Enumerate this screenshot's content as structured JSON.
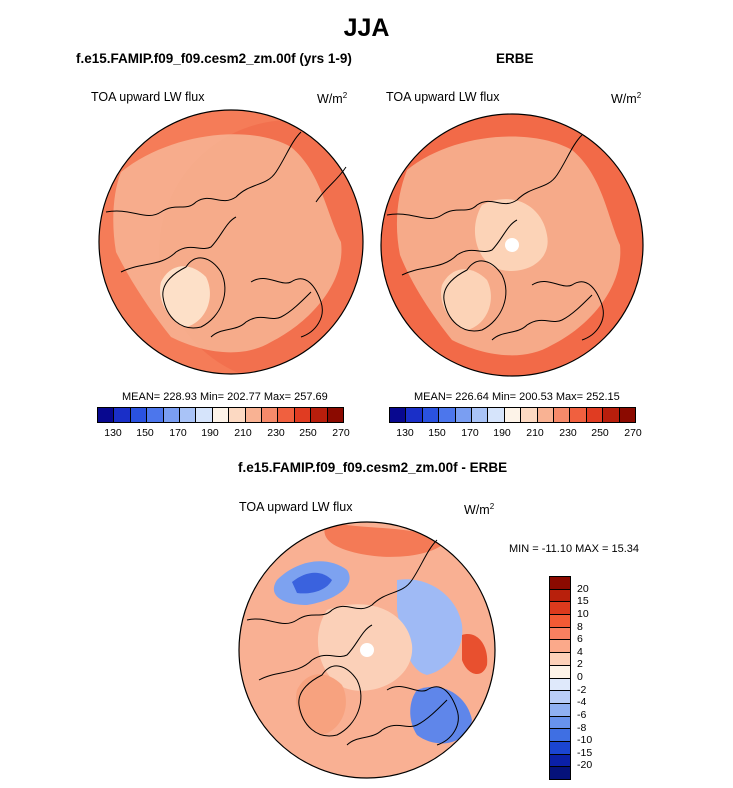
{
  "page": {
    "season": "JJA"
  },
  "panels": [
    {
      "id": "model",
      "title": "f.e15.FAMIP.f09_f09.cesm2_zm.00f (yrs 1-9)",
      "field": "TOA upward LW flux",
      "units_base": "W/m",
      "units_exp": "2",
      "stats": "MEAN= 228.93  Min= 202.77  Max= 257.69",
      "pole_hole": false,
      "ocean_color": "#f57c58",
      "land_color": "#f7b595",
      "greenland_color": "#fde0c8"
    },
    {
      "id": "erbe",
      "title": "ERBE",
      "field": "TOA upward LW flux",
      "units_base": "W/m",
      "units_exp": "2",
      "stats": "MEAN= 226.64  Min= 200.53  Max= 252.15",
      "pole_hole": true,
      "ocean_color": "#f26a48",
      "land_color": "#f7b595",
      "greenland_color": "#fcd3b7"
    },
    {
      "id": "diff",
      "title": "f.e15.FAMIP.f09_f09.cesm2_zm.00f - ERBE",
      "field": "TOA upward LW flux",
      "units_base": "W/m",
      "units_exp": "2",
      "stats": "MIN = -11.10 MAX =  15.34",
      "pole_hole": true,
      "ocean_color": "#f9b093",
      "land_color": "#fbd0b8",
      "greenland_color": "#f7a27f"
    }
  ],
  "colorbar_abs": {
    "colors": [
      "#08088f",
      "#1a2fc8",
      "#2a52e0",
      "#4c76ec",
      "#7a9ef2",
      "#a9c3f7",
      "#d6e4fb",
      "#fdf3e8",
      "#fcd9c2",
      "#f9b293",
      "#f68a6a",
      "#f0603f",
      "#e03c22",
      "#b81e0c",
      "#8b0a00"
    ],
    "tick_labels": [
      "130",
      "150",
      "170",
      "190",
      "210",
      "230",
      "250",
      "270"
    ]
  },
  "colorbar_diff": {
    "colors": [
      "#8b0a00",
      "#b8200c",
      "#dc3a1d",
      "#f25a34",
      "#f98060",
      "#fba98a",
      "#fdd0b8",
      "#fdf3e8",
      "#dfe9fb",
      "#b9cdf7",
      "#8fb0f2",
      "#6892ec",
      "#3f6fe3",
      "#1b45d2",
      "#0b20a8",
      "#05127a"
    ],
    "tick_labels": [
      "20",
      "15",
      "10",
      "8",
      "6",
      "4",
      "2",
      "0",
      "-2",
      "-4",
      "-6",
      "-8",
      "-10",
      "-15",
      "-20"
    ]
  },
  "chart_data": [
    {
      "type": "heatmap",
      "title": "f.e15.FAMIP.f09_f09.cesm2_zm.00f (yrs 1-9)",
      "subtitle": "TOA upward LW flux (W/m2), JJA",
      "projection": "north-polar stereographic",
      "mean": 228.93,
      "min": 202.77,
      "max": 257.69,
      "colorbar_levels": [
        130,
        150,
        170,
        190,
        210,
        230,
        250,
        270
      ]
    },
    {
      "type": "heatmap",
      "title": "ERBE",
      "subtitle": "TOA upward LW flux (W/m2), JJA",
      "projection": "north-polar stereographic",
      "mean": 226.64,
      "min": 200.53,
      "max": 252.15,
      "colorbar_levels": [
        130,
        150,
        170,
        190,
        210,
        230,
        250,
        270
      ]
    },
    {
      "type": "heatmap",
      "title": "f.e15.FAMIP.f09_f09.cesm2_zm.00f - ERBE",
      "subtitle": "TOA upward LW flux (W/m2) difference, JJA",
      "projection": "north-polar stereographic",
      "min": -11.1,
      "max": 15.34,
      "colorbar_levels": [
        20,
        15,
        10,
        8,
        6,
        4,
        2,
        0,
        -2,
        -4,
        -6,
        -8,
        -10,
        -15,
        -20
      ]
    }
  ]
}
